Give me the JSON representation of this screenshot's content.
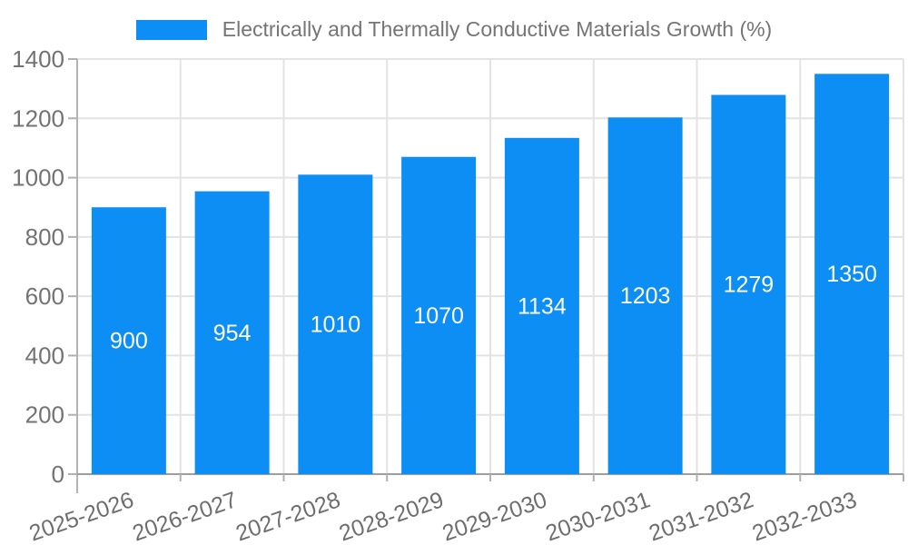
{
  "legend": {
    "label": "Electrically and Thermally Conductive Materials Growth (%)"
  },
  "chart_data": {
    "type": "bar",
    "title": "Electrically and Thermally Conductive Materials Growth (%)",
    "categories": [
      "2025-2026",
      "2026-2027",
      "2027-2028",
      "2028-2029",
      "2029-2030",
      "2030-2031",
      "2031-2032",
      "2032-2033"
    ],
    "values": [
      900,
      954,
      1010,
      1070,
      1134,
      1203,
      1279,
      1350
    ],
    "bar_value_labels": [
      "900",
      "954",
      "1010",
      "1070",
      "1134",
      "1203",
      "1279",
      "1350"
    ],
    "xlabel": "",
    "ylabel": "",
    "ylim": [
      0,
      1400
    ],
    "y_ticks": [
      0,
      200,
      400,
      600,
      800,
      1000,
      1200,
      1400
    ],
    "grid": true,
    "legend_position": "top",
    "x_label_rotation_deg": -19,
    "colors": {
      "bar": "#0d8ef4",
      "bar_label": "#ffffff",
      "y_axis_text": "#737373",
      "x_axis_text": "#6e6e6e",
      "gridline": "#e3e3e3",
      "axis_line": "#9e9e9e",
      "left_axis_line": "#b3b3b3",
      "tick": "#b0b0b0",
      "legend_text": "#757575"
    }
  }
}
